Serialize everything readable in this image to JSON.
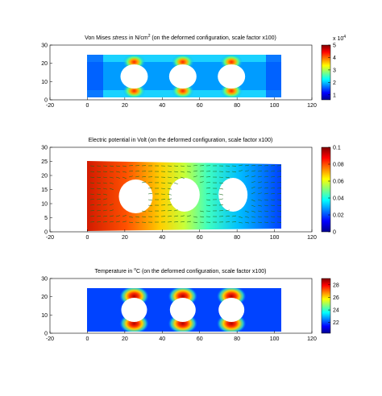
{
  "chart_data": [
    {
      "type": "heatmap",
      "title_prefix": "Von Mises ",
      "title_em": "stress",
      "title_mid": " in N/cm",
      "title_sup": "2",
      "title_suffix": " (on the deformed configuration, scale factor x100)",
      "xlim": [
        -20,
        120
      ],
      "ylim": [
        0,
        30
      ],
      "x_ticks": [
        "-20",
        "0",
        "20",
        "40",
        "60",
        "80",
        "100",
        "120"
      ],
      "y_ticks": [
        "0",
        "10",
        "20",
        "30"
      ],
      "colorbar": {
        "range": [
          0.6,
          5.0
        ],
        "ticks": [
          "1",
          "2",
          "3",
          "4",
          "5"
        ],
        "tick_values": [
          1,
          2,
          3,
          4,
          5
        ],
        "multiplier": "x 10",
        "multiplier_exp": "4"
      },
      "holes_x": [
        25,
        51,
        77
      ],
      "hotspot": "holes_top_bottom"
    },
    {
      "type": "heatmap",
      "title": "Electric potential in Volt (on the deformed configuration, scale factor x100)",
      "xlim": [
        -20,
        120
      ],
      "ylim": [
        0,
        30
      ],
      "x_ticks": [
        "-20",
        "0",
        "20",
        "40",
        "60",
        "80",
        "100",
        "120"
      ],
      "y_ticks": [
        "0",
        "5",
        "10",
        "15",
        "20",
        "25",
        "30"
      ],
      "colorbar": {
        "range": [
          0,
          0.1
        ],
        "ticks": [
          "0",
          "0.02",
          "0.04",
          "0.06",
          "0.08",
          "0.1"
        ],
        "tick_values": [
          0,
          0.02,
          0.04,
          0.06,
          0.08,
          0.1
        ]
      },
      "holes_x": [
        25,
        51,
        77
      ],
      "field": "gradient_left_high",
      "overlay": "current density arrows"
    },
    {
      "type": "heatmap",
      "title_prefix": "Temperature in ",
      "title_sup": "o",
      "title_suffix": "C (on the deformed configuration, scale factor x100)",
      "xlim": [
        -20,
        120
      ],
      "ylim": [
        0,
        30
      ],
      "x_ticks": [
        "-20",
        "0",
        "20",
        "40",
        "60",
        "80",
        "100",
        "120"
      ],
      "y_ticks": [
        "0",
        "10",
        "20",
        "30"
      ],
      "colorbar": {
        "range": [
          20.3,
          29.0
        ],
        "ticks": [
          "22",
          "24",
          "26",
          "28"
        ],
        "tick_values": [
          22,
          24,
          26,
          28
        ]
      },
      "holes_x": [
        25,
        51,
        77
      ],
      "hotspot": "holes_top_bottom"
    }
  ],
  "colors": {
    "colormap": [
      "#00008f",
      "#0000ff",
      "#00ffff",
      "#ffff00",
      "#ff0000",
      "#800000"
    ],
    "arrows": "#1a6b1a"
  }
}
